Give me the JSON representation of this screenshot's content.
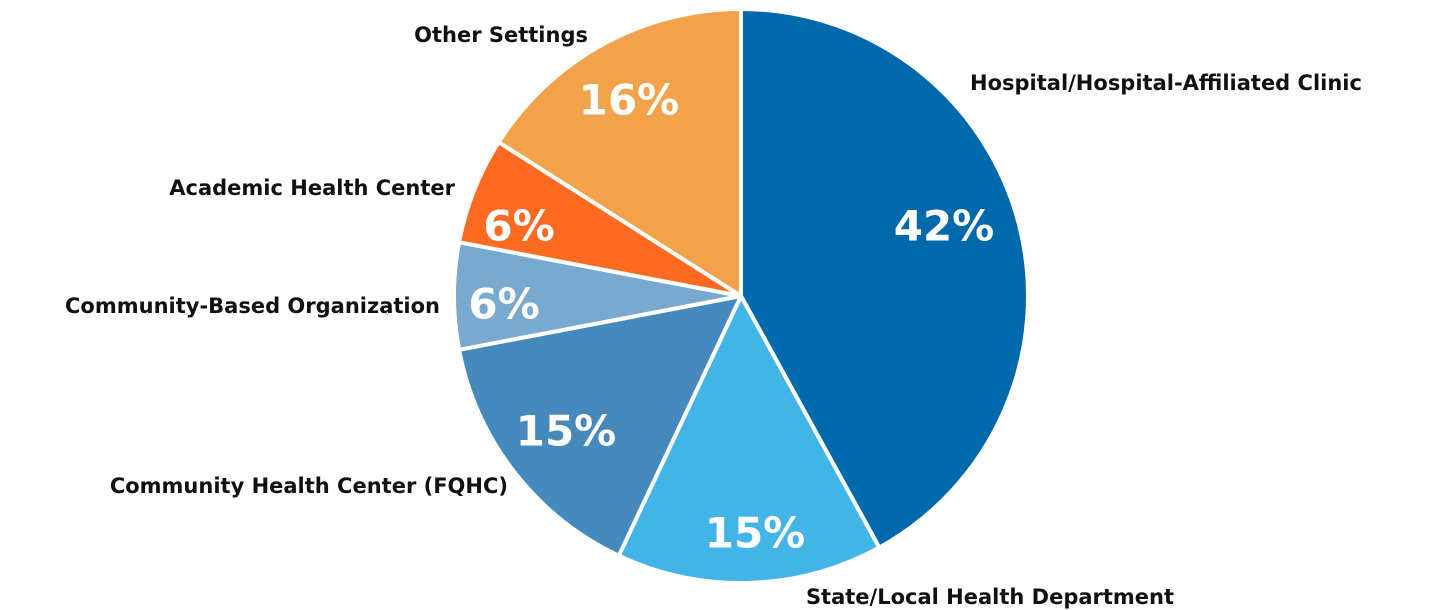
{
  "chart_data": {
    "type": "pie",
    "categories": [
      "Hospital/Hospital-Affiliated Clinic",
      "State/Local Health Department",
      "Community Health Center (FQHC)",
      "Community-Based Organization",
      "Academic Health Center",
      "Other Settings"
    ],
    "values": [
      42,
      15,
      15,
      6,
      6,
      16
    ],
    "value_labels": [
      "42%",
      "15%",
      "15%",
      "6%",
      "6%",
      "16%"
    ],
    "colors": [
      "#0069ab",
      "#42b4e6",
      "#4589bd",
      "#79a9cf",
      "#ff6a22",
      "#f2a24a"
    ]
  }
}
